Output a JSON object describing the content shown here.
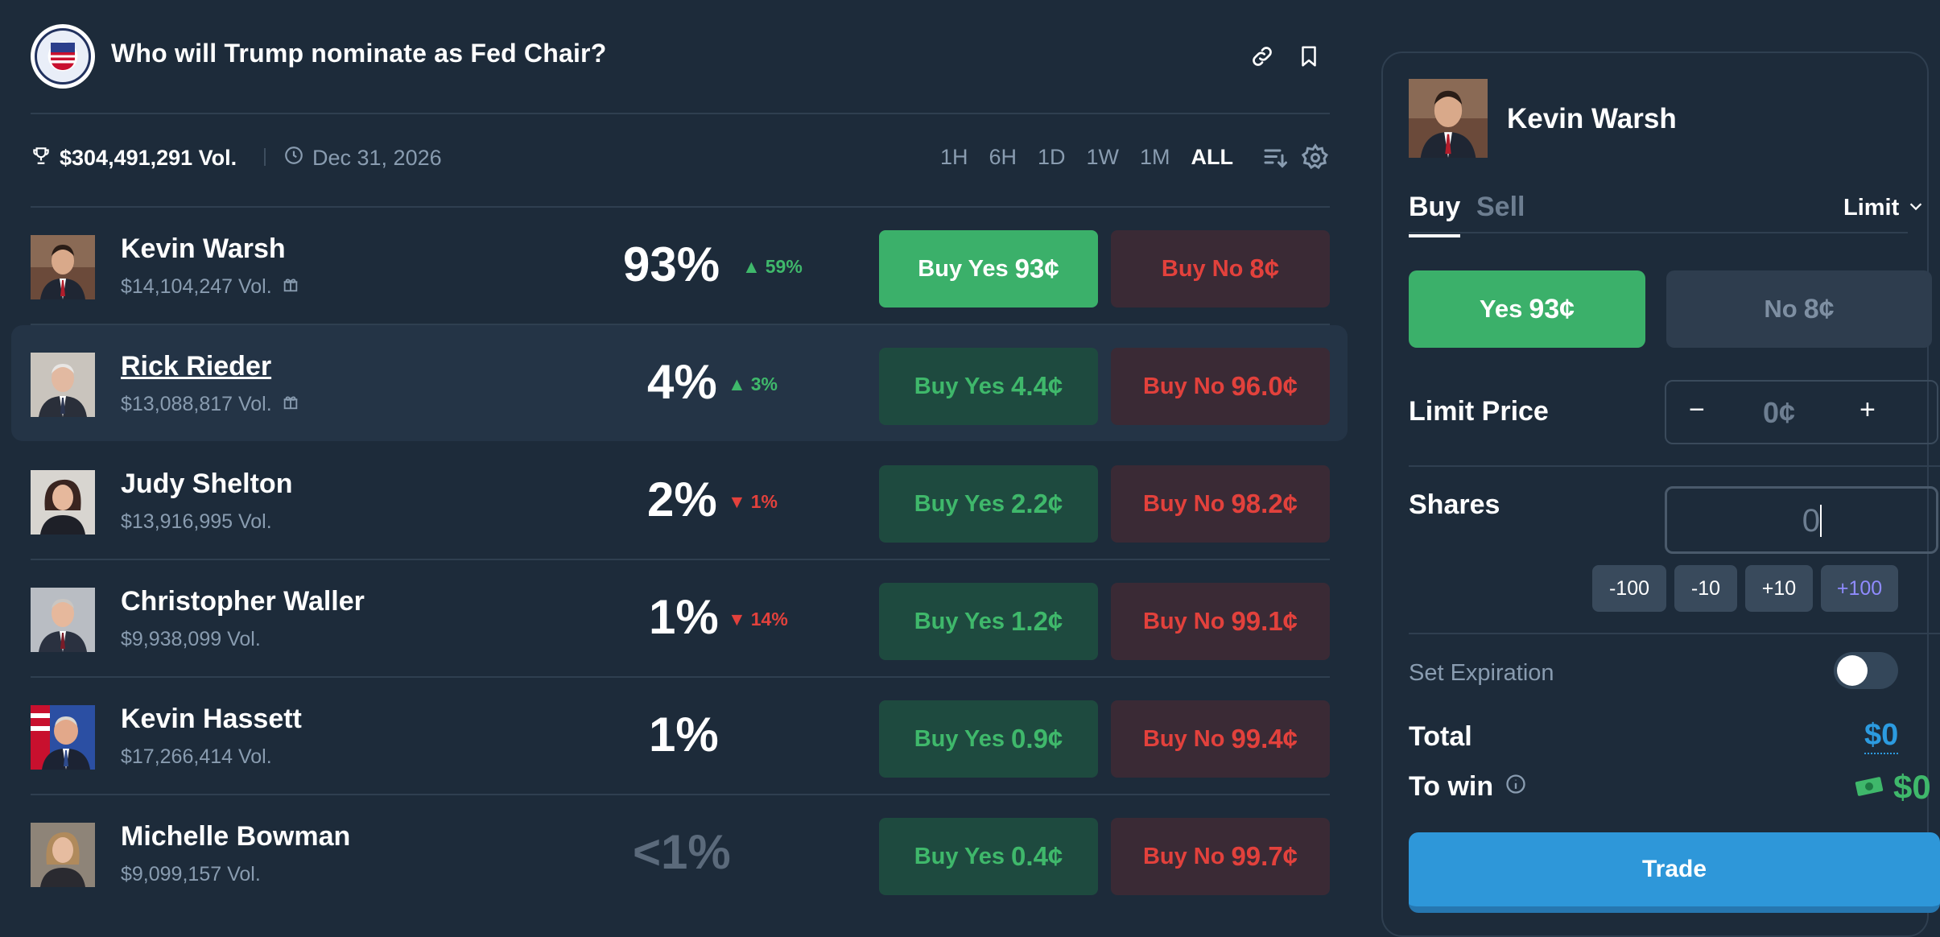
{
  "market": {
    "title": "Who will Trump nominate as Fed Chair?",
    "volume": "$304,491,291 Vol.",
    "end_date": "Dec 31, 2026",
    "time_ranges": [
      "1H",
      "6H",
      "1D",
      "1W",
      "1M",
      "ALL"
    ],
    "active_range": "ALL"
  },
  "outcomes": [
    {
      "name": "Kevin Warsh",
      "volume": "$14,104,247 Vol.",
      "has_gift": true,
      "percent": "93%",
      "change": "59%",
      "direction": "up",
      "yes_label": "Buy Yes",
      "yes_price": "93¢",
      "no_label": "Buy No",
      "no_price": "8¢",
      "selected": true
    },
    {
      "name": "Rick Rieder",
      "volume": "$13,088,817 Vol.",
      "has_gift": true,
      "percent": "4%",
      "change": "3%",
      "direction": "up",
      "yes_label": "Buy Yes",
      "yes_price": "4.4¢",
      "no_label": "Buy No",
      "no_price": "96.0¢",
      "hovered": true
    },
    {
      "name": "Judy Shelton",
      "volume": "$13,916,995 Vol.",
      "has_gift": false,
      "percent": "2%",
      "change": "1%",
      "direction": "down",
      "yes_label": "Buy Yes",
      "yes_price": "2.2¢",
      "no_label": "Buy No",
      "no_price": "98.2¢"
    },
    {
      "name": "Christopher Waller",
      "volume": "$9,938,099 Vol.",
      "has_gift": false,
      "percent": "1%",
      "change": "14%",
      "direction": "down",
      "yes_label": "Buy Yes",
      "yes_price": "1.2¢",
      "no_label": "Buy No",
      "no_price": "99.1¢"
    },
    {
      "name": "Kevin Hassett",
      "volume": "$17,266,414 Vol.",
      "has_gift": false,
      "percent": "1%",
      "change": "",
      "direction": "none",
      "yes_label": "Buy Yes",
      "yes_price": "0.9¢",
      "no_label": "Buy No",
      "no_price": "99.4¢"
    },
    {
      "name": "Michelle Bowman",
      "volume": "$9,099,157 Vol.",
      "has_gift": false,
      "percent": "<1%",
      "change": "",
      "direction": "none",
      "yes_label": "Buy Yes",
      "yes_price": "0.4¢",
      "no_label": "Buy No",
      "no_price": "99.7¢"
    }
  ],
  "trade_panel": {
    "candidate": "Kevin Warsh",
    "tabs": {
      "buy": "Buy",
      "sell": "Sell"
    },
    "order_type": "Limit",
    "yes_option": {
      "label": "Yes",
      "price": "93¢"
    },
    "no_option": {
      "label": "No",
      "price": "8¢"
    },
    "limit_price_label": "Limit Price",
    "limit_price_value": "0¢",
    "minus": "−",
    "plus": "+",
    "shares_label": "Shares",
    "shares_value": "0",
    "share_chips": [
      "-100",
      "-10",
      "+10",
      "+100"
    ],
    "set_expiration_label": "Set Expiration",
    "total_label": "Total",
    "total_value": "$0",
    "to_win_label": "To win",
    "to_win_value": "$0",
    "trade_button": "Trade"
  },
  "colors": {
    "background": "#1d2b3a",
    "green": "#3bb06a",
    "red": "#e2413c",
    "blue": "#2e97d9",
    "muted": "#899cb0"
  }
}
